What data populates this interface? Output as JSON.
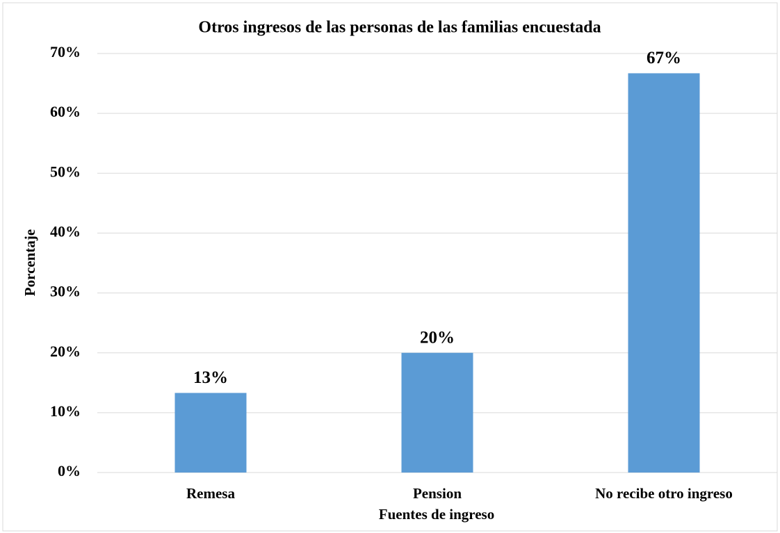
{
  "chart_data": {
    "type": "bar",
    "title": "Otros ingresos de las personas de las familias encuestada",
    "xlabel": "Fuentes de ingreso",
    "ylabel": "Porcentaje",
    "categories": [
      "Remesa",
      "Pension",
      "No recibe otro ingreso"
    ],
    "values": [
      13.3,
      20,
      66.7
    ],
    "value_labels": [
      "13%",
      "20%",
      "67%"
    ],
    "color": "#5b9bd5",
    "ylim": [
      0,
      70
    ],
    "yticks": [
      {
        "value": 0,
        "label": "0%"
      },
      {
        "value": 10,
        "label": "10%"
      },
      {
        "value": 20,
        "label": "20%"
      },
      {
        "value": 30,
        "label": "30%"
      },
      {
        "value": 40,
        "label": "40%"
      },
      {
        "value": 50,
        "label": "50%"
      },
      {
        "value": 60,
        "label": "60%"
      },
      {
        "value": 70,
        "label": "70%"
      }
    ],
    "grid": true
  }
}
